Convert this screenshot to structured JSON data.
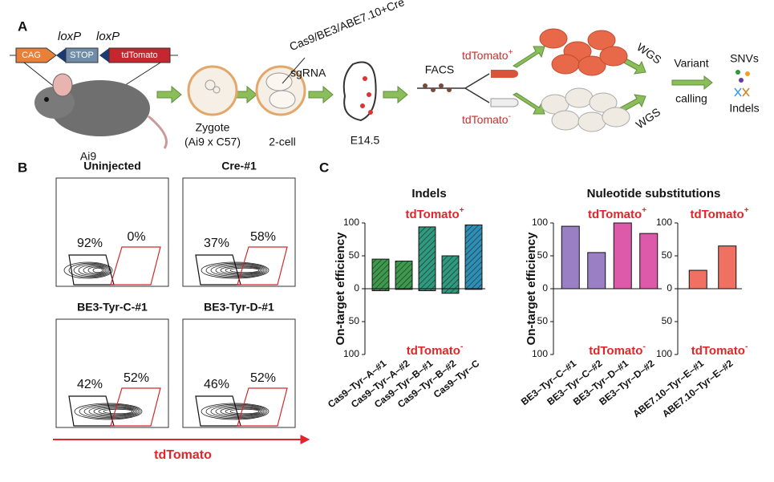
{
  "panel_a": {
    "label": "A",
    "loxp": [
      "loxP",
      "loxP"
    ],
    "cassette": [
      "CAG",
      "STOP",
      "tdTomato"
    ],
    "mouse": "Ai9",
    "zygote": [
      "Zygote",
      "(Ai9 x C57)"
    ],
    "two_cell": "2-cell",
    "injection": [
      "Cas9/BE3/ABE7.10+Cre",
      "sgRNA"
    ],
    "embryo": "E14.5",
    "facs": "FACS",
    "sorted": [
      {
        "text": "tdTomato",
        "sup": "+"
      },
      {
        "text": "tdTomato",
        "sup": "-"
      }
    ],
    "wgs": [
      "WGS",
      "WGS"
    ],
    "variant_calling": [
      "Variant",
      "calling"
    ],
    "outputs": [
      "SNVs",
      "Indels"
    ]
  },
  "panel_b": {
    "label": "B",
    "plots": [
      {
        "title": "Uninjected",
        "gates": [
          "92%",
          "0%"
        ]
      },
      {
        "title": "Cre-#1",
        "gates": [
          "37%",
          "58%"
        ]
      },
      {
        "title": "BE3-Tyr-C-#1",
        "gates": [
          "42%",
          "52%"
        ]
      },
      {
        "title": "BE3-Tyr-D-#1",
        "gates": [
          "46%",
          "52%"
        ]
      }
    ],
    "x_axis": "tdTomato"
  },
  "panel_c": {
    "label": "C"
  },
  "chart_data": [
    {
      "type": "bar",
      "title": "Indels",
      "ylabel": "On-target efficiency",
      "ylim": [
        -100,
        100
      ],
      "yticks": [
        100,
        50,
        0,
        {
          "value": -50,
          "label": "50"
        },
        {
          "value": -100,
          "label": "100"
        }
      ],
      "categories": [
        "Cas9–Tyr–A–#1",
        "Cas9–Tyr–A–#2",
        "Cas9–Tyr–B–#1",
        "Cas9–Tyr–B–#2",
        "Cas9–Tyr–C"
      ],
      "colors": [
        "#3d9a4c",
        "#3d9a4c",
        "#2e9a80",
        "#2e9a80",
        "#2d8fb5"
      ],
      "hatched": [
        true,
        true,
        true,
        true,
        true
      ],
      "series": [
        {
          "name": "tdTomato",
          "sup": "+",
          "values": [
            45,
            42,
            94,
            50,
            97
          ]
        },
        {
          "name": "tdTomato",
          "sup": "-",
          "values": [
            -3,
            -1,
            -3,
            -7,
            -1
          ]
        }
      ]
    },
    {
      "type": "bar",
      "title": "Nuleotide substitutions",
      "ylabel": "On-target efficiency",
      "ylim": [
        -100,
        100
      ],
      "yticks": [
        100,
        50,
        0,
        {
          "value": -50,
          "label": "50"
        },
        {
          "value": -100,
          "label": "100"
        }
      ],
      "categories": [
        "BE3–Tyr–C–#1",
        "BE3–Tyr–C–#2",
        "BE3–Tyr–D–#1",
        "BE3–Tyr–D–#2"
      ],
      "colors": [
        "#9b7fc4",
        "#9b7fc4",
        "#dc5aa9",
        "#dc5aa9"
      ],
      "hatched": [
        false,
        false,
        false,
        false
      ],
      "series": [
        {
          "name": "tdTomato",
          "sup": "+",
          "values": [
            95,
            55,
            100,
            84
          ]
        },
        {
          "name": "tdTomato",
          "sup": "-",
          "values": [
            0,
            0,
            0,
            0
          ]
        }
      ]
    },
    {
      "type": "bar",
      "ylim": [
        -100,
        100
      ],
      "yticks": [
        100,
        50,
        0,
        {
          "value": -50,
          "label": "50"
        },
        {
          "value": -100,
          "label": "100"
        }
      ],
      "categories": [
        "ABE7.10–Tyr–E–#1",
        "ABE7.10–Tyr–E–#2"
      ],
      "colors": [
        "#f07062",
        "#f07062"
      ],
      "hatched": [
        false,
        false
      ],
      "series": [
        {
          "name": "tdTomato",
          "sup": "+",
          "values": [
            28,
            65
          ]
        },
        {
          "name": "tdTomato",
          "sup": "-",
          "values": [
            0,
            0
          ]
        }
      ]
    }
  ]
}
